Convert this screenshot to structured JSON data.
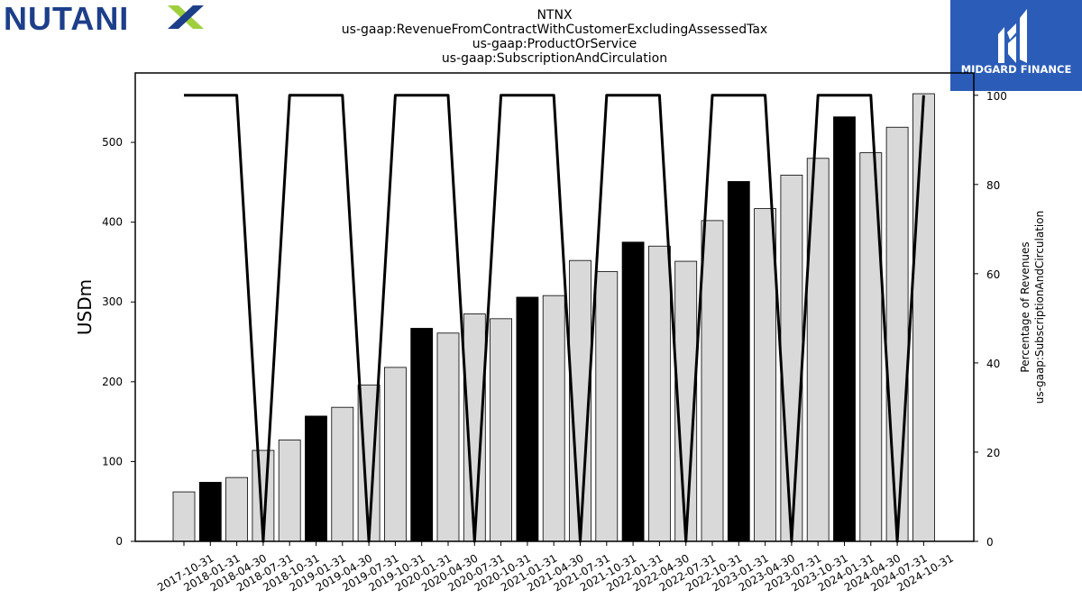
{
  "header": {
    "ticker": "NTNX",
    "title_lines": [
      "NTNX",
      "us-gaap:RevenueFromContractWithCustomerExcludingAssessedTax",
      "us-gaap:ProductOrService",
      "us-gaap:SubscriptionAndCirculation"
    ]
  },
  "logos": {
    "left_brand_text": "NUTANIX",
    "left_brand_color": "#1d3f8a",
    "left_accent_color": "#9fcf3f",
    "right_brand_text": "MIDGARD FINANCE",
    "right_brand_bg": "#2b5cb8"
  },
  "chart_data": {
    "type": "bar",
    "categories": [
      "2017-10-31",
      "2018-01-31",
      "2018-04-30",
      "2018-07-31",
      "2018-10-31",
      "2019-01-31",
      "2019-04-30",
      "2019-07-31",
      "2019-10-31",
      "2020-01-31",
      "2020-04-30",
      "2020-07-31",
      "2020-10-31",
      "2021-01-31",
      "2021-04-30",
      "2021-07-31",
      "2021-10-31",
      "2022-01-31",
      "2022-04-30",
      "2022-07-31",
      "2022-10-31",
      "2023-01-31",
      "2023-04-30",
      "2023-07-31",
      "2023-10-31",
      "2024-01-31",
      "2024-04-30",
      "2024-07-31",
      "2024-10-31"
    ],
    "series": [
      {
        "axis": "left",
        "kind": "bar",
        "values": [
          62,
          74,
          80,
          114,
          127,
          157,
          168,
          196,
          218,
          267,
          261,
          285,
          279,
          306,
          308,
          352,
          338,
          375,
          370,
          351,
          402,
          451,
          417,
          459,
          480,
          532,
          487,
          519,
          561
        ],
        "highlight": [
          false,
          true,
          false,
          false,
          false,
          true,
          false,
          false,
          false,
          true,
          false,
          false,
          false,
          true,
          false,
          false,
          false,
          true,
          false,
          false,
          false,
          true,
          false,
          false,
          false,
          true,
          false,
          false,
          false
        ]
      },
      {
        "axis": "right",
        "kind": "line",
        "values": [
          100,
          100,
          100,
          0,
          100,
          100,
          100,
          0,
          100,
          100,
          100,
          0,
          100,
          100,
          100,
          0,
          100,
          100,
          100,
          0,
          100,
          100,
          100,
          0,
          100,
          100,
          100,
          0,
          100
        ]
      }
    ],
    "ylabel_left": "USDm",
    "ylabel_right_lines": [
      "Percentage of Revenues",
      "us-gaap:SubscriptionAndCirculation"
    ],
    "ylim_left": [
      0,
      587
    ],
    "ylim_right": [
      0,
      105
    ],
    "yticks_left": [
      0,
      100,
      200,
      300,
      400,
      500
    ],
    "yticks_right": [
      0,
      20,
      40,
      60,
      80,
      100
    ],
    "colors": {
      "bar": "#d9d9d9",
      "bar_highlight": "#000000",
      "bar_edge": "#000000",
      "line": "#000000"
    },
    "grid": false,
    "legend": "none"
  }
}
